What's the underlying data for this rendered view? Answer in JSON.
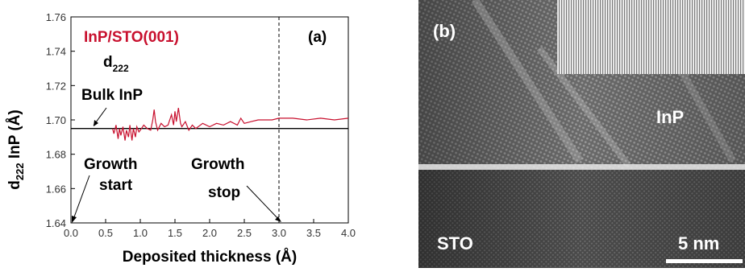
{
  "panel_a": {
    "label": "(a)",
    "title": "InP/STO(001)",
    "title_color": "#c8102e",
    "series_color": "#c8102e",
    "d222_label": "d",
    "d222_sub": "222",
    "bulk_label": "Bulk InP",
    "growth_start_line1": "Growth",
    "growth_start_line2": "start",
    "growth_stop_line1": "Growth",
    "growth_stop_line2": "stop",
    "ylabel_main": "d",
    "ylabel_sub": "222",
    "ylabel_rest": " InP (Å)",
    "xlabel": "Deposited thickness (Å)"
  },
  "panel_b": {
    "label": "(b)",
    "layer_top": "InP",
    "layer_bottom": "STO",
    "scalebar_label": "5 nm"
  },
  "chart_data": {
    "type": "line",
    "title": "InP/STO(001)",
    "xlabel": "Deposited thickness (Å)",
    "ylabel": "d222 InP (Å)",
    "xlim": [
      0.0,
      4.0
    ],
    "ylim": [
      1.64,
      1.76
    ],
    "xticks": [
      "0.0",
      "0.5",
      "1.0",
      "1.5",
      "2.0",
      "2.5",
      "3.0",
      "3.5",
      "4.0"
    ],
    "yticks": [
      "1.64",
      "1.66",
      "1.68",
      "1.70",
      "1.72",
      "1.74",
      "1.76"
    ],
    "bulk_inp_value": 1.695,
    "growth_stop_x": 3.0,
    "series": [
      {
        "x": [
          0.6,
          0.62,
          0.65,
          0.68,
          0.7,
          0.72,
          0.75,
          0.78,
          0.8,
          0.83,
          0.85,
          0.88,
          0.9,
          0.93,
          0.95,
          0.98,
          1.0,
          1.05,
          1.1,
          1.15,
          1.18,
          1.2,
          1.22,
          1.25,
          1.3,
          1.35,
          1.4,
          1.45,
          1.48,
          1.5,
          1.52,
          1.55,
          1.58,
          1.6,
          1.65,
          1.7,
          1.75,
          1.8,
          1.9,
          2.0,
          2.1,
          2.2,
          2.3,
          2.4,
          2.45,
          2.5,
          2.6,
          2.7,
          2.8,
          2.9,
          3.0,
          3.2,
          3.4,
          3.6,
          3.8,
          4.0
        ],
        "y": [
          1.695,
          1.692,
          1.697,
          1.689,
          1.695,
          1.691,
          1.696,
          1.688,
          1.694,
          1.69,
          1.697,
          1.688,
          1.695,
          1.69,
          1.696,
          1.693,
          1.694,
          1.697,
          1.695,
          1.694,
          1.7,
          1.706,
          1.699,
          1.694,
          1.698,
          1.696,
          1.697,
          1.703,
          1.697,
          1.705,
          1.699,
          1.707,
          1.698,
          1.696,
          1.699,
          1.694,
          1.697,
          1.695,
          1.698,
          1.696,
          1.698,
          1.697,
          1.699,
          1.697,
          1.701,
          1.698,
          1.699,
          1.7,
          1.7,
          1.7,
          1.701,
          1.701,
          1.7,
          1.701,
          1.7,
          1.701
        ]
      }
    ]
  }
}
